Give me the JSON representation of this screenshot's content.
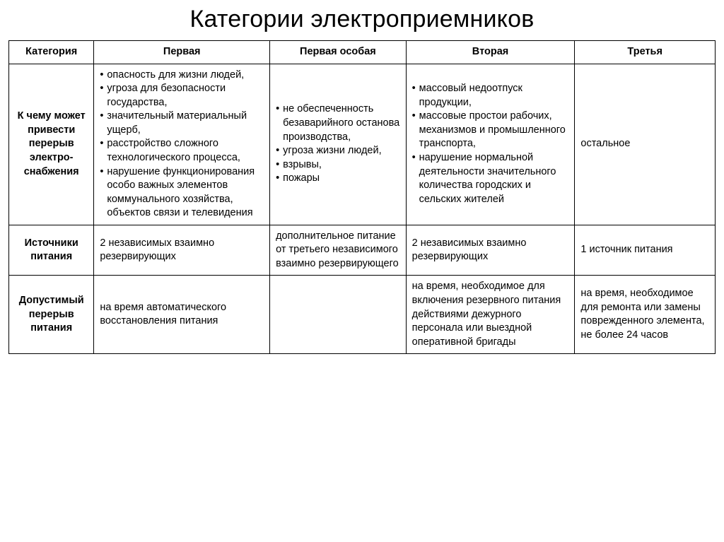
{
  "title": "Категории электроприемников",
  "columns": [
    "Категория",
    "Первая",
    "Первая особая",
    "Вторая",
    "Третья"
  ],
  "rows": [
    {
      "label": "К чему может привести перерыв электро-снабжения",
      "cells": [
        {
          "type": "bullets",
          "items": [
            "опасность для жизни людей,",
            "угроза для безопасности государства,",
            "значительный материальный ущерб,",
            "расстройство сложного технологического процесса,",
            "нарушение функционирования особо важных элементов коммунального хозяйства, объектов связи и телевидения"
          ]
        },
        {
          "type": "bullets",
          "items": [
            "не обеспеченность безаварийного останова производства,",
            "угроза жизни людей,",
            "взрывы,",
            "пожары"
          ]
        },
        {
          "type": "bullets",
          "items": [
            "массовый недоотпуск продукции,",
            "массовые простои рабочих, механизмов и промышленного транспорта,",
            "нарушение нормальной деятельности значительного количества городских и сельских жителей"
          ]
        },
        {
          "type": "text",
          "text": "остальное"
        }
      ]
    },
    {
      "label": "Источники питания",
      "cells": [
        {
          "type": "text",
          "text": "2 независимых взаимно резервирующих"
        },
        {
          "type": "text",
          "text": "дополнительное питание от третьего независимого взаимно резервирующего"
        },
        {
          "type": "text",
          "text": "2 независимых взаимно резервирующих"
        },
        {
          "type": "text",
          "text": "1 источник питания"
        }
      ]
    },
    {
      "label": "Допустимый перерыв питания",
      "cells": [
        {
          "type": "text",
          "text": "на время автоматического восстановления питания"
        },
        {
          "type": "text",
          "text": ""
        },
        {
          "type": "text",
          "text": "на время, необходимое для включения резервного питания действиями дежурного персонала или выездной оперативной бригады"
        },
        {
          "type": "text",
          "text": "на время, необходимое для ремонта или замены поврежденного элемента, не более 24 часов"
        }
      ]
    }
  ],
  "style": {
    "background_color": "#ffffff",
    "border_color": "#000000",
    "title_fontsize": 34,
    "title_fontweight": 400,
    "header_fontsize": 14.5,
    "header_fontweight": 700,
    "body_fontsize": 14.5,
    "font_family": "Arial"
  }
}
